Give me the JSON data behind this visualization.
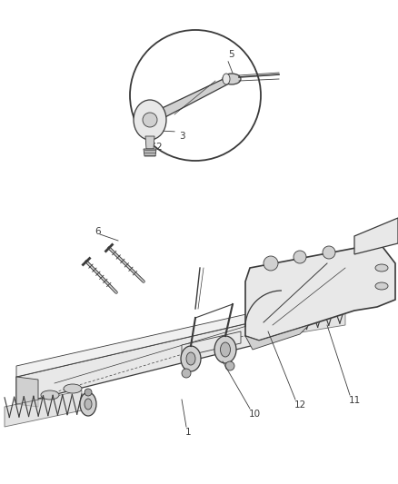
{
  "background_color": "#ffffff",
  "figure_width": 4.38,
  "figure_height": 5.33,
  "dpi": 100,
  "line_color": "#3a3a3a",
  "fill_light": "#e8e8e8",
  "fill_mid": "#d0d0d0",
  "fill_dark": "#b8b8b8",
  "label_fontsize": 7.5,
  "callout_lw": 0.5
}
